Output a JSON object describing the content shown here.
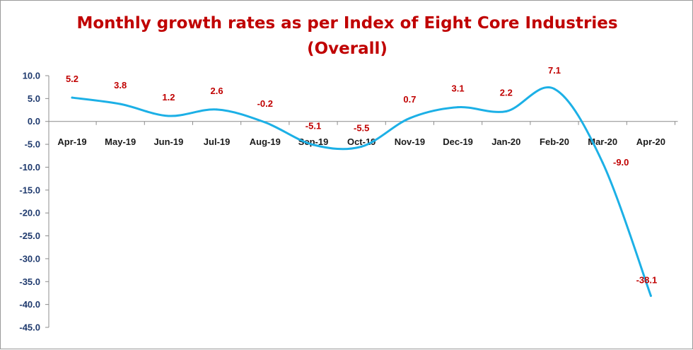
{
  "chart_data": {
    "type": "line",
    "title_line1": "Monthly growth rates as per Index of Eight Core Industries",
    "title_line2": "(Overall)",
    "categories": [
      "Apr-19",
      "May-19",
      "Jun-19",
      "Jul-19",
      "Aug-19",
      "Sep-19",
      "Oct-19",
      "Nov-19",
      "Dec-19",
      "Jan-20",
      "Feb-20",
      "Mar-20",
      "Apr-20"
    ],
    "series": [
      {
        "values": [
          5.2,
          3.8,
          1.2,
          2.6,
          -0.2,
          -5.1,
          -5.5,
          0.7,
          3.1,
          2.2,
          7.1,
          -9.0,
          -38.1
        ]
      }
    ],
    "data_labels": [
      "5.2",
      "3.8",
      "1.2",
      "2.6",
      "-0.2",
      "-5.1",
      "-5.5",
      "0.7",
      "3.1",
      "2.2",
      "7.1",
      "-9.0",
      "-38.1"
    ],
    "y_ticks": [
      "10.0",
      "5.0",
      "0.0",
      "-5.0",
      "-10.0",
      "-15.0",
      "-20.0",
      "-25.0",
      "-30.0",
      "-35.0",
      "-40.0",
      "-45.0"
    ],
    "ylim": [
      -45,
      10
    ],
    "xlabel": "",
    "ylabel": "",
    "grid": false,
    "legend": "none",
    "colors": {
      "line": "#1cb0e6",
      "title": "#c00000",
      "data_label": "#c00000",
      "axis_text": "#1f3a6e"
    }
  }
}
